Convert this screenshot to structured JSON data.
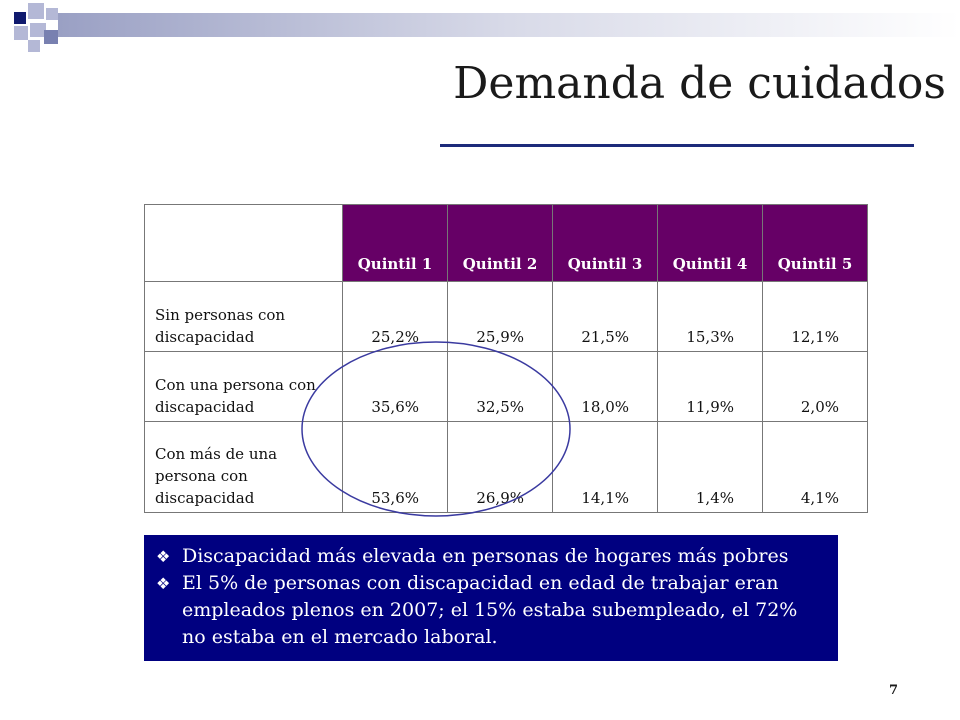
{
  "slide": {
    "title": "Demanda de cuidados",
    "page_number": "7"
  },
  "table": {
    "headers": [
      "",
      "Quintil 1",
      "Quintil 2",
      "Quintil 3",
      "Quintil 4",
      "Quintil 5"
    ],
    "rows": [
      {
        "label": "Sin personas con discapacidad",
        "values": [
          "25,2%",
          "25,9%",
          "21,5%",
          "15,3%",
          "12,1%"
        ]
      },
      {
        "label": "Con una persona con discapacidad",
        "values": [
          "35,6%",
          "32,5%",
          "18,0%",
          "11,9%",
          "2,0%"
        ]
      },
      {
        "label": "Con más de una persona con discapacidad",
        "values": [
          "53,6%",
          "26,9%",
          "14,1%",
          "1,4%",
          "4,1%"
        ]
      }
    ]
  },
  "notes": [
    "Discapacidad más elevada en personas de hogares más  pobres",
    "El 5% de personas con discapacidad en edad de trabajar eran empleados plenos en 2007; el 15% estaba subempleado, el 72% no estaba en el mercado laboral."
  ],
  "colors": {
    "header_bg": "#660066",
    "note_box_bg": "#000080",
    "title_rule": "#1c2a7a",
    "ellipse": "#3a3aa0"
  }
}
